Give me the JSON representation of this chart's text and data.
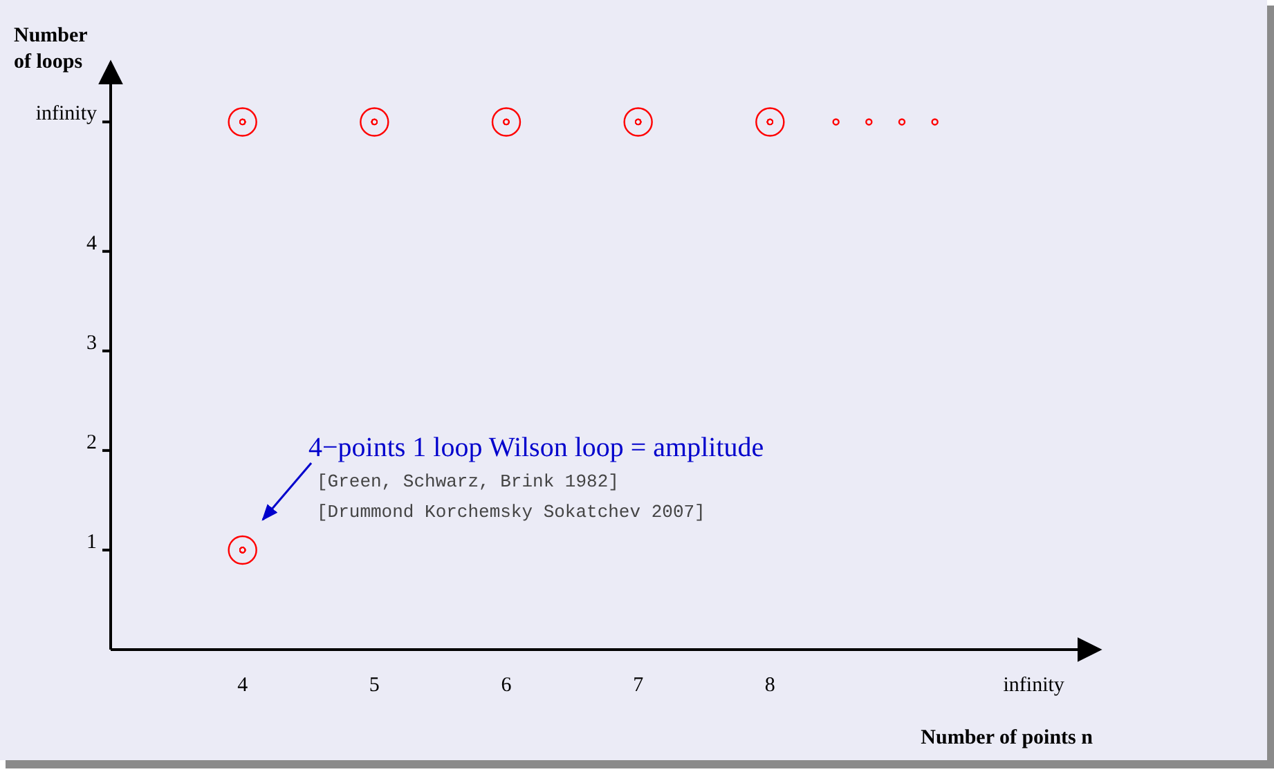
{
  "chart_data": {
    "type": "scatter",
    "xlabel": "Number of points n",
    "ylabel": "Number of loops",
    "xlim": [
      3,
      10.5
    ],
    "xticks": [
      4,
      5,
      6,
      7,
      8,
      {
        "value": 10,
        "label": "infinity"
      }
    ],
    "ylim": [
      0,
      5.9
    ],
    "yticks": [
      1,
      2,
      3,
      4,
      {
        "value": 5.3,
        "label": "infinity"
      }
    ],
    "grid": false,
    "marker": "circle",
    "series": [
      {
        "color": "#ff0000",
        "x": [
          4,
          4,
          5,
          6,
          7,
          8
        ],
        "values": [
          1,
          5.3,
          5.3,
          5.3,
          5.3,
          5.3
        ]
      },
      {
        "color": "#ff0000",
        "x": [
          8.5,
          8.75,
          9,
          9.25
        ],
        "values": [
          5.3,
          5.3,
          5.3,
          5.3
        ]
      }
    ],
    "annotations": [
      "4−points 1 loop Wilson loop = amplitude",
      "[Green, Schwarz, Brink 1982]",
      "[Drummond Korchemsky Sokatchev 2007]"
    ]
  }
}
